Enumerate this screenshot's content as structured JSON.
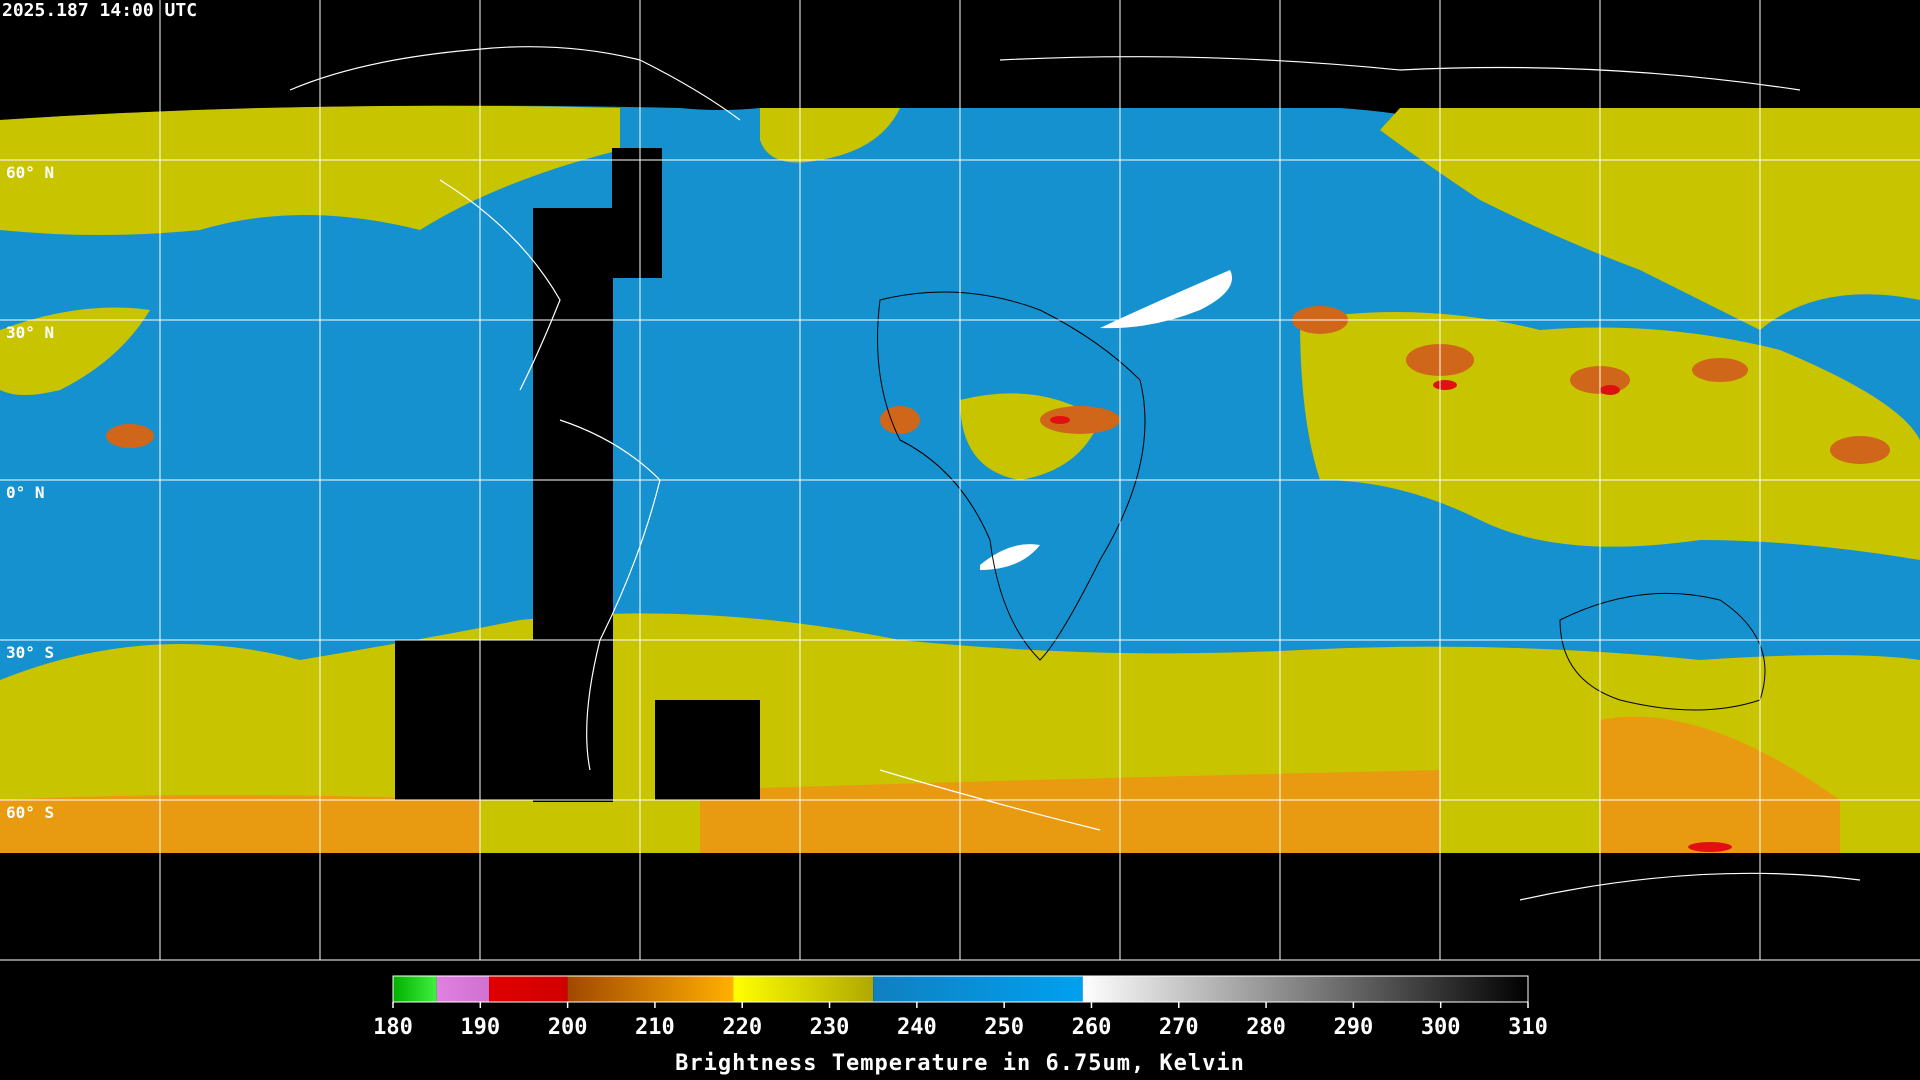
{
  "header": {
    "title": "2025.187 14:00 UTC"
  },
  "lat_labels": [
    "60° N",
    "30° N",
    "0° N",
    "30° S",
    "60° S"
  ],
  "colorbar": {
    "lim": [
      180,
      310
    ],
    "ticks": [
      180,
      190,
      200,
      210,
      220,
      230,
      240,
      250,
      260,
      270,
      280,
      290,
      300,
      310
    ],
    "segments": [
      {
        "from": 180,
        "to": 185,
        "colors": [
          "#00b000",
          "#40f040"
        ]
      },
      {
        "from": 185,
        "to": 191,
        "colors": [
          "#e080e0",
          "#d070d0"
        ]
      },
      {
        "from": 191,
        "to": 200,
        "colors": [
          "#e00000",
          "#d00000"
        ]
      },
      {
        "from": 200,
        "to": 219,
        "colors": [
          "#a04800",
          "#ffb000"
        ]
      },
      {
        "from": 219,
        "to": 235,
        "colors": [
          "#ffff00",
          "#b0a800"
        ]
      },
      {
        "from": 235,
        "to": 259,
        "colors": [
          "#1080c0",
          "#00a0f0"
        ]
      },
      {
        "from": 259,
        "to": 310,
        "colors": [
          "#ffffff",
          "#000000"
        ]
      }
    ],
    "label": "Brightness Temperature in 6.75um, Kelvin"
  }
}
